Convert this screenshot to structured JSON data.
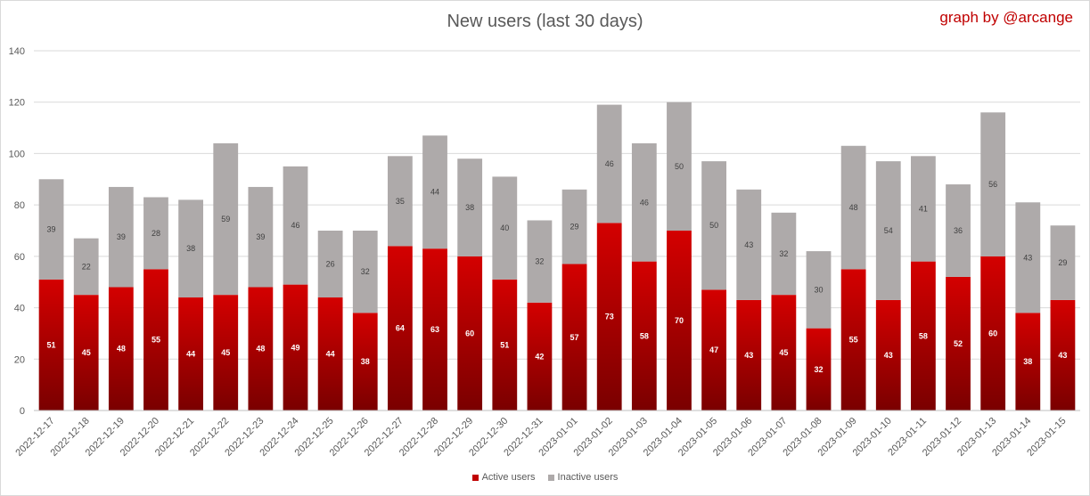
{
  "chart_data": {
    "type": "bar",
    "stacked": true,
    "title": "New users (last 30 days)",
    "credit": "graph by @arcange",
    "ylim": [
      0,
      140
    ],
    "yticks": [
      0,
      20,
      40,
      60,
      80,
      100,
      120,
      140
    ],
    "grid": true,
    "legend_position": "bottom",
    "categories": [
      "2022-12-17",
      "2022-12-18",
      "2022-12-19",
      "2022-12-20",
      "2022-12-21",
      "2022-12-22",
      "2022-12-23",
      "2022-12-24",
      "2022-12-25",
      "2022-12-26",
      "2022-12-27",
      "2022-12-28",
      "2022-12-29",
      "2022-12-30",
      "2022-12-31",
      "2023-01-01",
      "2023-01-02",
      "2023-01-03",
      "2023-01-04",
      "2023-01-05",
      "2023-01-06",
      "2023-01-07",
      "2023-01-08",
      "2023-01-09",
      "2023-01-10",
      "2023-01-11",
      "2023-01-12",
      "2023-01-13",
      "2023-01-14",
      "2023-01-15"
    ],
    "series": [
      {
        "name": "Active users",
        "color": "#c00000",
        "values": [
          51,
          45,
          48,
          55,
          44,
          45,
          48,
          49,
          44,
          38,
          64,
          63,
          60,
          51,
          42,
          57,
          73,
          58,
          70,
          47,
          43,
          45,
          32,
          55,
          43,
          58,
          52,
          60,
          38,
          43
        ]
      },
      {
        "name": "Inactive users",
        "color": "#aeaaaa",
        "values": [
          39,
          22,
          39,
          28,
          38,
          59,
          39,
          46,
          26,
          32,
          35,
          44,
          38,
          40,
          32,
          29,
          46,
          46,
          50,
          50,
          43,
          32,
          30,
          48,
          54,
          41,
          36,
          56,
          43,
          29
        ]
      }
    ]
  }
}
